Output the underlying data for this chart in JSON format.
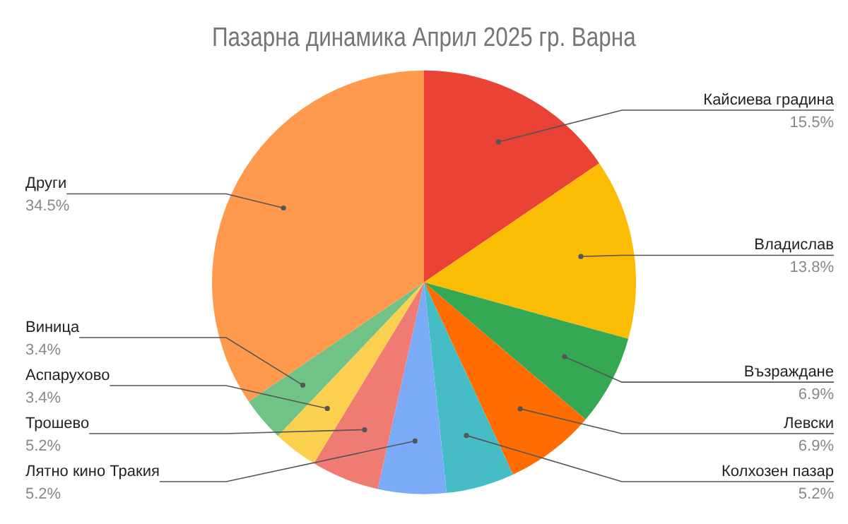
{
  "chart_data": {
    "type": "pie",
    "title": "Пазарна динамика Април 2025 гр. Варна",
    "categories": [
      "Кайсиева градина",
      "Владислав",
      "Възраждане",
      "Левски",
      "Колхозен пазар",
      "Лятно кино Тракия",
      "Трошево",
      "Аспарухово",
      "Виница",
      "Други"
    ],
    "values": [
      15.5,
      13.8,
      6.9,
      6.9,
      5.2,
      5.2,
      5.2,
      3.4,
      3.4,
      34.5
    ],
    "colors": [
      "#ea4335",
      "#fbbc04",
      "#34a853",
      "#ff6d01",
      "#46bdc6",
      "#7baaf7",
      "#f07b72",
      "#fcd04f",
      "#71c287",
      "#ff994d"
    ],
    "value_labels": [
      "15.5%",
      "13.8%",
      "6.9%",
      "6.9%",
      "5.2%",
      "5.2%",
      "5.2%",
      "3.4%",
      "3.4%",
      "34.5%"
    ]
  }
}
